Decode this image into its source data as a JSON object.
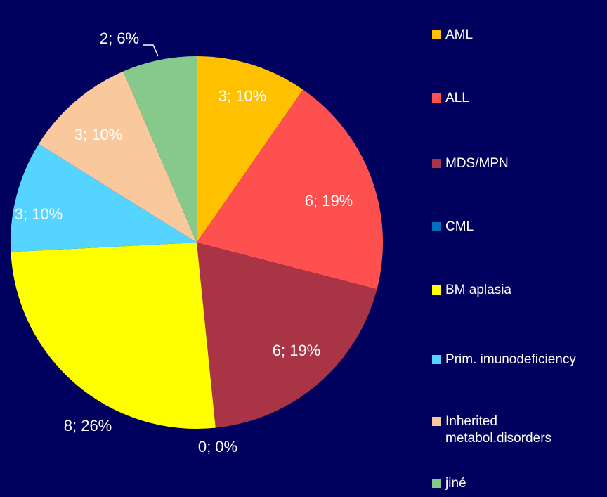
{
  "chart_data": {
    "type": "pie",
    "categories": [
      "AML",
      "ALL",
      "MDS/MPN",
      "CML",
      "BM aplasia",
      "Prim. imunodeficiency",
      "Inherited metabol.disorders",
      "jiné"
    ],
    "values": [
      3,
      6,
      6,
      0,
      8,
      3,
      3,
      2
    ],
    "value_labels": [
      "3; 10%",
      "6; 19%",
      "6; 19%",
      "0; 0%",
      "8; 26%",
      "3; 10%",
      "3; 10%",
      "2; 6%"
    ],
    "colors": [
      "#ffc000",
      "#ff5050",
      "#a93445",
      "#0070c0",
      "#ffff00",
      "#55d4ff",
      "#f9c99d",
      "#86c98a"
    ],
    "legend": "right"
  }
}
